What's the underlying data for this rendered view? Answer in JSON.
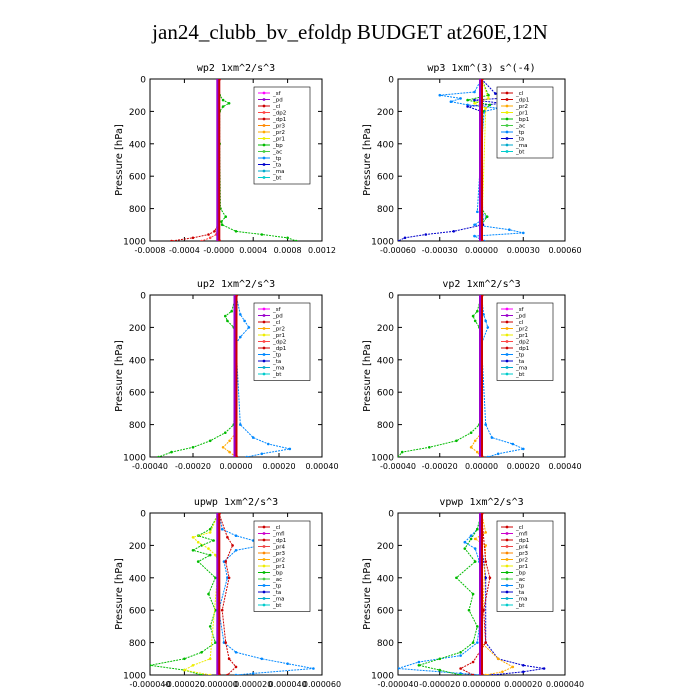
{
  "title": "jan24_clubb_bv_efoldp  BUDGET at260E,12N",
  "colors": {
    "sf": "#ff00ff",
    "pd": "#9900cc",
    "cl": "#cc0000",
    "mfl": "#cc00cc",
    "dp2": "#ff4444",
    "dp1": "#cc0000",
    "pr3": "#ff8800",
    "pr2": "#ffaa00",
    "pr1": "#eeee00",
    "pr4": "#ee4444",
    "bp": "#00bb00",
    "ac": "#44cc44",
    "tp": "#0088ff",
    "ta": "#0000cc",
    "ma": "#00aacc",
    "bt": "#00cccc",
    "axis": "#000000"
  },
  "chart_data": [
    {
      "type": "line",
      "title": "wp2   1xm^2/s^3",
      "xlabel": "",
      "ylabel": "Pressure [hPa]",
      "xlim": [
        -0.0008,
        0.0012
      ],
      "ylim": [
        1000,
        0
      ],
      "xticks": [
        -0.0008,
        -0.0004,
        0.0,
        0.0004,
        0.0008,
        0.0012
      ],
      "xtick_labels": [
        "-0.0008",
        "-0.0004",
        "-0.0000",
        "0.0004",
        "0.0008",
        "0.0012"
      ],
      "yticks": [
        0,
        200,
        400,
        600,
        800,
        1000
      ],
      "legend": [
        "_sf",
        "_pd",
        "_cl",
        "_dp2",
        "_dp1",
        "_pr3",
        "_pr2",
        "_pr1",
        "_bp",
        "_ac",
        "_tp",
        "_ta",
        "_ma",
        "_bt"
      ],
      "legend_position": "top-right",
      "series": [
        {
          "key": "bp",
          "p": [
            0,
            100,
            130,
            150,
            170,
            200,
            400,
            800,
            850,
            880,
            900,
            940,
            960,
            980,
            1000
          ],
          "v": [
            0,
            1e-05,
            5e-05,
            0.00012,
            5e-05,
            1e-05,
            1e-05,
            2e-05,
            8e-05,
            3e-05,
            4e-05,
            0.0002,
            0.0005,
            0.0008,
            0.0009
          ]
        },
        {
          "key": "dp1",
          "p": [
            0,
            150,
            900,
            940,
            960,
            980,
            1000
          ],
          "v": [
            0,
            0,
            -1e-05,
            -5e-05,
            -0.00012,
            -0.0003,
            -0.00055
          ]
        },
        {
          "key": "dp2",
          "p": [
            0,
            200,
            900,
            960,
            980,
            1000
          ],
          "v": [
            0,
            0,
            0,
            -3e-05,
            -0.0001,
            -0.0002
          ]
        },
        {
          "key": "pd",
          "p": [
            0,
            1000
          ],
          "v": [
            -1e-05,
            -1e-05
          ]
        },
        {
          "key": "cl",
          "p": [
            0,
            1000
          ],
          "v": [
            0.0,
            0.0
          ]
        }
      ]
    },
    {
      "type": "line",
      "title": "wp3   1xm^(3) s^(-4)",
      "xlabel": "",
      "ylabel": "Pressure [hPa]",
      "xlim": [
        -0.0006,
        0.0006
      ],
      "ylim": [
        1000,
        0
      ],
      "xticks": [
        -0.0006,
        -0.0003,
        0.0,
        0.0003,
        0.0006
      ],
      "xtick_labels": [
        "-0.00060",
        "-0.00030",
        "0.00000",
        "0.00030",
        "0.00060"
      ],
      "yticks": [
        0,
        200,
        400,
        600,
        800,
        1000
      ],
      "legend": [
        "_cl",
        "_dp1",
        "_pr2",
        "_pr1",
        "_bp1",
        "_ac",
        "_tp",
        "_ta",
        "_ma",
        "_bt"
      ],
      "legend_position": "top-right",
      "series": [
        {
          "key": "tp",
          "p": [
            0,
            80,
            100,
            120,
            140,
            160,
            180,
            200,
            400,
            820,
            850,
            900,
            930,
            950,
            970,
            1000
          ],
          "v": [
            0,
            -5e-05,
            -0.0003,
            -0.00015,
            -0.00022,
            -0.0001,
            0.00012,
            2e-05,
            0.0,
            -3e-05,
            4e-05,
            -5e-05,
            0.0002,
            0.0003,
            -5e-05,
            2e-05
          ]
        },
        {
          "key": "ta",
          "p": [
            0,
            90,
            110,
            130,
            150,
            170,
            200,
            400,
            900,
            940,
            960,
            980,
            1000
          ],
          "v": [
            0,
            0.0001,
            0.0003,
            -5e-05,
            0.00015,
            -0.0001,
            0.0,
            0.0,
            1e-05,
            -0.0002,
            -0.0004,
            -0.00055,
            -0.0006
          ]
        },
        {
          "key": "bp",
          "p": [
            0,
            100,
            130,
            160,
            200,
            800,
            850,
            900,
            1000
          ],
          "v": [
            0,
            5e-05,
            -0.0001,
            6e-05,
            1e-05,
            0.0,
            4e-05,
            0.0,
            0.0
          ]
        },
        {
          "key": "pr1",
          "p": [
            0,
            120,
            150,
            180,
            1000
          ],
          "v": [
            0,
            5e-05,
            -5e-05,
            3e-05,
            0.0
          ]
        },
        {
          "key": "cl",
          "p": [
            0,
            1000
          ],
          "v": [
            0.0,
            0.0
          ]
        }
      ]
    },
    {
      "type": "line",
      "title": "up2   1xm^2/s^3",
      "xlabel": "",
      "ylabel": "Pressure [hPa]",
      "xlim": [
        -0.0004,
        0.0004
      ],
      "ylim": [
        1000,
        0
      ],
      "xticks": [
        -0.0004,
        -0.0002,
        0.0,
        0.0002,
        0.0004
      ],
      "xtick_labels": [
        "-0.00040",
        "-0.00020",
        "0.00000",
        "0.00020",
        "0.00040"
      ],
      "yticks": [
        0,
        200,
        400,
        600,
        800,
        1000
      ],
      "legend": [
        "_sf",
        "_pd",
        "_cl",
        "_pr2",
        "_pr1",
        "_dp2",
        "_dp1",
        "_tp",
        "_ta",
        "_ma",
        "_bt"
      ],
      "legend_position": "top-right",
      "series": [
        {
          "key": "bp",
          "p": [
            0,
            100,
            130,
            160,
            200,
            400,
            800,
            850,
            900,
            940,
            970,
            1000
          ],
          "v": [
            0,
            -2e-05,
            -5e-05,
            -4e-05,
            -1e-05,
            0.0,
            -1e-05,
            -5e-05,
            -0.00012,
            -0.0002,
            -0.0003,
            -0.00036
          ]
        },
        {
          "key": "tp",
          "p": [
            0,
            120,
            160,
            200,
            260,
            300,
            800,
            880,
            920,
            950,
            980,
            1000
          ],
          "v": [
            0,
            2e-05,
            4e-05,
            6e-05,
            2e-05,
            0.0,
            2e-05,
            8e-05,
            0.00015,
            0.00025,
            0.00012,
            5e-05
          ]
        },
        {
          "key": "pr2",
          "p": [
            0,
            850,
            900,
            940,
            970,
            1000
          ],
          "v": [
            0,
            0.0,
            -3e-05,
            -6e-05,
            -3e-05,
            0.0
          ]
        },
        {
          "key": "dp1",
          "p": [
            0,
            950,
            1000
          ],
          "v": [
            0,
            0.0,
            0.0
          ]
        },
        {
          "key": "cl",
          "p": [
            0,
            1000
          ],
          "v": [
            0.0,
            0.0
          ]
        }
      ]
    },
    {
      "type": "line",
      "title": "vp2   1xm^2/s^3",
      "xlabel": "",
      "ylabel": "Pressure [hPa]",
      "xlim": [
        -0.0004,
        0.0004
      ],
      "ylim": [
        1000,
        0
      ],
      "xticks": [
        -0.0004,
        -0.0002,
        0.0,
        0.0002,
        0.0004
      ],
      "xtick_labels": [
        "-0.00040",
        "-0.00020",
        "0.00000",
        "0.00020",
        "0.00040"
      ],
      "yticks": [
        0,
        200,
        400,
        600,
        800,
        1000
      ],
      "legend": [
        "_sf",
        "_pd",
        "_cl",
        "_pr2",
        "_pr1",
        "_dp2",
        "_dp1",
        "_tp",
        "_ta",
        "_ma",
        "_bt"
      ],
      "legend_position": "top-right",
      "series": [
        {
          "key": "bp",
          "p": [
            0,
            100,
            130,
            160,
            200,
            400,
            800,
            850,
            900,
            940,
            970,
            1000
          ],
          "v": [
            0,
            -2e-05,
            -4e-05,
            -3e-05,
            -1e-05,
            0.0,
            -1e-05,
            -5e-05,
            -0.00012,
            -0.00025,
            -0.00038,
            -0.0004
          ]
        },
        {
          "key": "tp",
          "p": [
            0,
            120,
            160,
            200,
            300,
            800,
            880,
            920,
            950,
            980,
            1000
          ],
          "v": [
            0,
            1e-05,
            2e-05,
            3e-05,
            0.0,
            2e-05,
            5e-05,
            0.00015,
            0.0002,
            8e-05,
            3e-05
          ]
        },
        {
          "key": "pr2",
          "p": [
            0,
            850,
            900,
            940,
            970,
            1000
          ],
          "v": [
            0,
            0.0,
            -3e-05,
            -5e-05,
            -2e-05,
            0.0
          ]
        },
        {
          "key": "cl",
          "p": [
            0,
            1000
          ],
          "v": [
            0.0,
            0.0
          ]
        }
      ]
    },
    {
      "type": "line",
      "title": "upwp   1xm^2/s^3",
      "xlabel": "",
      "ylabel": "Pressure [hPa]",
      "xlim": [
        -4e-05,
        6e-05
      ],
      "ylim": [
        1000,
        0
      ],
      "xticks": [
        -4e-05,
        -2e-05,
        0.0,
        2e-05,
        4e-05,
        6e-05
      ],
      "xtick_labels": [
        "-0.000040",
        "-0.000020",
        "0.000000",
        "0.000020",
        "0.000040",
        "0.000060"
      ],
      "yticks": [
        0,
        200,
        400,
        600,
        800,
        1000
      ],
      "legend": [
        "_cl",
        "_mfl",
        "_dp1",
        "_pr4",
        "_pr3",
        "_pr2",
        "_pr1",
        "_bp",
        "_ac",
        "_tp",
        "_ta",
        "_ma",
        "_bt"
      ],
      "legend_position": "top-right",
      "series": [
        {
          "key": "tp",
          "p": [
            0,
            100,
            140,
            170,
            200,
            230,
            300,
            400,
            600,
            800,
            860,
            900,
            930,
            960,
            990,
            1000
          ],
          "v": [
            0,
            2e-06,
            1e-05,
            2e-05,
            2.5e-05,
            1e-05,
            3e-06,
            5e-06,
            0.0,
            3e-06,
            1e-05,
            2.5e-05,
            4e-05,
            5.5e-05,
            2e-05,
            1e-05
          ]
        },
        {
          "key": "bp",
          "p": [
            0,
            100,
            140,
            170,
            200,
            230,
            260,
            300,
            400,
            500,
            600,
            700,
            800,
            860,
            900,
            940,
            970,
            1000
          ],
          "v": [
            0,
            -5e-06,
            -1.2e-05,
            -3e-06,
            -1e-05,
            -1.5e-05,
            -5e-06,
            -1.2e-05,
            -2e-06,
            -6e-06,
            -2e-06,
            -5e-06,
            -2e-06,
            -1e-05,
            -2e-05,
            -4e-05,
            -2e-05,
            -1e-05
          ]
        },
        {
          "key": "pr1",
          "p": [
            0,
            120,
            150,
            180,
            220,
            260,
            300,
            900,
            940,
            970,
            1000
          ],
          "v": [
            0,
            -5e-06,
            -1.5e-05,
            -1.2e-05,
            -6e-06,
            -2e-06,
            0.0,
            -5e-06,
            -1.5e-05,
            -2e-05,
            -5e-06
          ]
        },
        {
          "key": "dp1",
          "p": [
            0,
            150,
            200,
            300,
            400,
            600,
            800,
            900,
            950,
            1000
          ],
          "v": [
            0,
            5e-06,
            8e-06,
            4e-06,
            6e-06,
            2e-06,
            4e-06,
            6e-06,
            1e-05,
            5e-06
          ]
        },
        {
          "key": "cl",
          "p": [
            0,
            1000
          ],
          "v": [
            0.0,
            0.0
          ]
        }
      ]
    },
    {
      "type": "line",
      "title": "vpwp   1xm^2/s^3",
      "xlabel": "",
      "ylabel": "Pressure [hPa]",
      "xlim": [
        -4e-05,
        4e-05
      ],
      "ylim": [
        1000,
        0
      ],
      "xticks": [
        -4e-05,
        -2e-05,
        0.0,
        2e-05,
        4e-05
      ],
      "xtick_labels": [
        "-0.000040",
        "-0.000020",
        "0.000000",
        "0.000020",
        "0.000040"
      ],
      "yticks": [
        0,
        200,
        400,
        600,
        800,
        1000
      ],
      "legend": [
        "_cl",
        "_mfl",
        "_dp1",
        "_pr4",
        "_pr3",
        "_pr2",
        "_pr1",
        "_bp",
        "_ac",
        "_tp",
        "_ta",
        "_ma",
        "_bt"
      ],
      "legend_position": "top-right",
      "series": [
        {
          "key": "tp",
          "p": [
            0,
            100,
            140,
            180,
            220,
            300,
            400,
            600,
            800,
            880,
            920,
            960,
            990,
            1000
          ],
          "v": [
            0,
            -2e-06,
            -5e-06,
            -8e-06,
            -3e-06,
            -1e-06,
            0.0,
            0.0,
            -2e-06,
            -1e-05,
            -3e-05,
            -4e-05,
            -1e-05,
            0.0
          ]
        },
        {
          "key": "bp",
          "p": [
            0,
            100,
            160,
            220,
            300,
            400,
            500,
            600,
            700,
            800,
            860,
            900,
            940,
            970,
            1000
          ],
          "v": [
            0,
            -2e-06,
            -5e-06,
            -8e-06,
            -3e-06,
            -1.2e-05,
            -4e-06,
            -6e-06,
            -2e-06,
            -4e-06,
            -1e-05,
            -2e-05,
            -3e-05,
            -2e-05,
            -1e-05
          ]
        },
        {
          "key": "ta",
          "p": [
            0,
            200,
            400,
            800,
            900,
            940,
            960,
            980,
            1000
          ],
          "v": [
            0,
            0.0,
            2e-06,
            2e-06,
            8e-06,
            2e-05,
            3e-05,
            2e-05,
            5e-06
          ]
        },
        {
          "key": "pr2",
          "p": [
            0,
            120,
            160,
            200,
            800,
            900,
            950,
            980,
            1000
          ],
          "v": [
            0,
            2e-06,
            -3e-06,
            2e-06,
            0.0,
            8e-06,
            1.5e-05,
            1e-05,
            2e-06
          ]
        },
        {
          "key": "dp1",
          "p": [
            0,
            300,
            400,
            600,
            800,
            920,
            960,
            1000
          ],
          "v": [
            0,
            2e-06,
            4e-06,
            1e-06,
            2e-06,
            -4e-06,
            -1e-05,
            -4e-06
          ]
        },
        {
          "key": "cl",
          "p": [
            0,
            1000
          ],
          "v": [
            0.0,
            0.0
          ]
        }
      ]
    }
  ]
}
